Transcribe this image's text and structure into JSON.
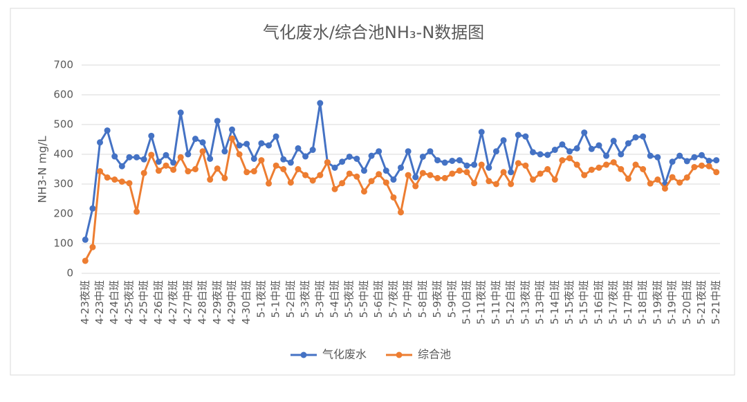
{
  "chart_data": {
    "type": "line",
    "title": "气化废水/综合池NH₃-N数据图",
    "y_label": "NH3-N  mg/L",
    "categories": [
      "4-23夜班",
      null,
      "4-23中班",
      null,
      "4-24白班",
      null,
      "4-25夜班",
      null,
      "4-25中班",
      null,
      "4-26白班",
      null,
      "4-27夜班",
      null,
      "4-27中班",
      null,
      "4-28白班",
      null,
      "4-29夜班",
      null,
      "4-29中班",
      null,
      "4-30白班",
      null,
      "5-1夜班",
      null,
      "5-1中班",
      null,
      "5-2白班",
      null,
      "5-3夜班",
      null,
      "5-3中班",
      null,
      "5-4白班",
      null,
      "5-5夜班",
      null,
      "5-5中班",
      null,
      "5-6白班",
      null,
      "5-7夜班",
      null,
      "5-7中班",
      null,
      "5-8白班",
      null,
      "5-9夜班",
      null,
      "5-9中班",
      null,
      "5-10白班",
      null,
      "5-11夜班",
      null,
      "5-11中班",
      null,
      "5-12白班",
      null,
      "5-13夜班",
      null,
      "5-13中班",
      null,
      "5-14白班",
      null,
      "5-15夜班",
      null,
      "5-15中班",
      null,
      "5-16白班",
      null,
      "5-17夜班",
      null,
      "5-17中班",
      null,
      "5-18白班",
      null,
      "5-19夜班",
      null,
      "5-19中班",
      null,
      "5-20白班",
      null,
      "5-21夜班",
      null,
      "5-21中班"
    ],
    "series": [
      {
        "name": "气化废水",
        "color": "#4472c4",
        "values": [
          113,
          218,
          440,
          480,
          393,
          360,
          390,
          390,
          383,
          462,
          375,
          397,
          372,
          540,
          400,
          452,
          440,
          385,
          512,
          410,
          483,
          430,
          435,
          385,
          437,
          430,
          460,
          383,
          372,
          420,
          393,
          415,
          572,
          373,
          355,
          375,
          392,
          385,
          345,
          395,
          410,
          345,
          315,
          355,
          410,
          323,
          392,
          410,
          380,
          372,
          378,
          380,
          362,
          365,
          475,
          355,
          410,
          447,
          340,
          465,
          460,
          407,
          400,
          398,
          415,
          433,
          410,
          420,
          473,
          418,
          430,
          395,
          445,
          400,
          437,
          457,
          460,
          395,
          390,
          300,
          375,
          395,
          377,
          390,
          397,
          378,
          380
        ]
      },
      {
        "name": "综合池",
        "color": "#ed7d31",
        "values": [
          42,
          88,
          343,
          322,
          315,
          308,
          303,
          207,
          337,
          398,
          345,
          362,
          348,
          390,
          343,
          350,
          410,
          315,
          352,
          320,
          453,
          400,
          340,
          343,
          380,
          302,
          362,
          350,
          305,
          350,
          330,
          312,
          330,
          373,
          283,
          303,
          335,
          325,
          275,
          310,
          333,
          305,
          255,
          205,
          330,
          293,
          337,
          330,
          320,
          320,
          335,
          345,
          340,
          303,
          365,
          310,
          300,
          340,
          300,
          370,
          362,
          315,
          335,
          350,
          315,
          380,
          387,
          365,
          330,
          348,
          355,
          365,
          373,
          350,
          318,
          365,
          350,
          302,
          315,
          285,
          323,
          305,
          322,
          357,
          362,
          360,
          340
        ]
      }
    ],
    "ylim": [
      0,
      700
    ],
    "yticks": [
      0,
      100,
      200,
      300,
      400,
      500,
      600,
      700
    ],
    "grid": true,
    "legend": "bottom"
  }
}
